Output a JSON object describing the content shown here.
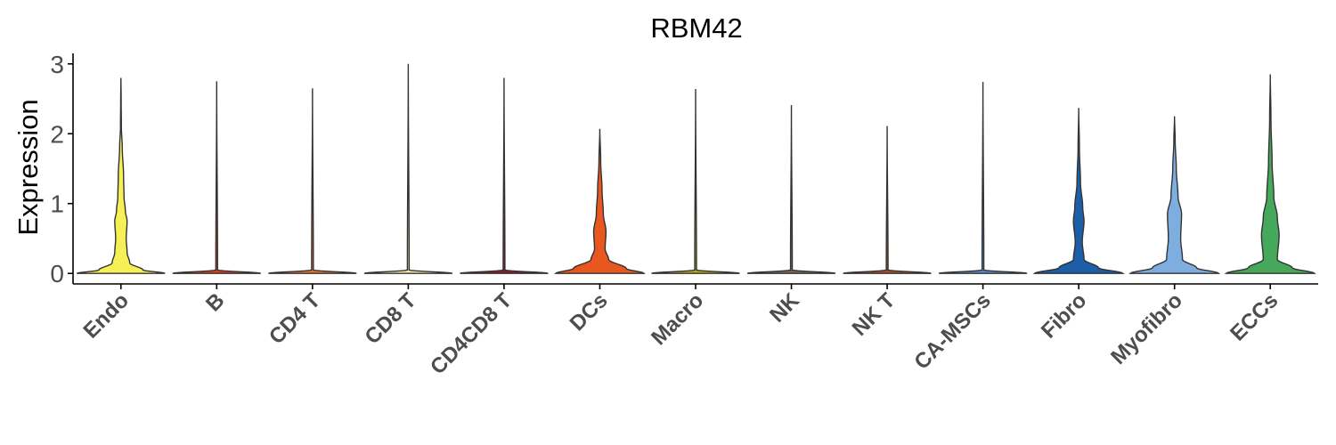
{
  "chart_data": {
    "type": "violin",
    "title": "RBM42",
    "xlabel": "",
    "ylabel": "Expression",
    "ylim": [
      -0.15,
      3.15
    ],
    "yticks": [
      0,
      1,
      2,
      3
    ],
    "grid": false,
    "legend": "none",
    "categories": [
      "Endo",
      "B",
      "CD4 T",
      "CD8 T",
      "CD4CD8 T",
      "DCs",
      "Macro",
      "NK",
      "NK T",
      "CA-MSCs",
      "Fibro",
      "Myofibro",
      "ECCs"
    ],
    "colors": [
      "#F7EF56",
      "#DC3B1E",
      "#E6732E",
      "#F2E9A4",
      "#8A1C2B",
      "#E8571E",
      "#B5A91E",
      "#7A6A5A",
      "#A34E2C",
      "#5A8AC2",
      "#1C5FA8",
      "#7EAEE0",
      "#45A85A"
    ],
    "max_values": [
      2.8,
      2.75,
      2.65,
      3.0,
      2.8,
      2.07,
      2.64,
      2.41,
      2.11,
      2.74,
      2.37,
      2.25,
      2.85
    ],
    "density_profiles": [
      [
        [
          0,
          1
        ],
        [
          0.05,
          0.5
        ],
        [
          0.15,
          0.2
        ],
        [
          0.3,
          0.14
        ],
        [
          0.5,
          0.12
        ],
        [
          0.75,
          0.14
        ],
        [
          0.9,
          0.1
        ],
        [
          1.1,
          0.07
        ],
        [
          1.4,
          0.06
        ],
        [
          1.8,
          0.03
        ],
        [
          2.1,
          0.01
        ],
        [
          2.5,
          0.005
        ],
        [
          2.8,
          0
        ]
      ],
      [
        [
          0,
          1
        ],
        [
          0.05,
          0.02
        ],
        [
          2.75,
          0
        ]
      ],
      [
        [
          0,
          1
        ],
        [
          0.05,
          0.02
        ],
        [
          2.65,
          0
        ]
      ],
      [
        [
          0,
          1
        ],
        [
          0.05,
          0.02
        ],
        [
          3.0,
          0
        ]
      ],
      [
        [
          0,
          1
        ],
        [
          0.05,
          0.02
        ],
        [
          2.8,
          0
        ]
      ],
      [
        [
          0,
          1
        ],
        [
          0.07,
          0.6
        ],
        [
          0.2,
          0.2
        ],
        [
          0.35,
          0.12
        ],
        [
          0.6,
          0.14
        ],
        [
          0.85,
          0.08
        ],
        [
          1.2,
          0.05
        ],
        [
          1.6,
          0.02
        ],
        [
          2.07,
          0
        ]
      ],
      [
        [
          0,
          1
        ],
        [
          0.05,
          0.02
        ],
        [
          2.64,
          0
        ]
      ],
      [
        [
          0,
          1
        ],
        [
          0.05,
          0.02
        ],
        [
          2.41,
          0
        ]
      ],
      [
        [
          0,
          1
        ],
        [
          0.05,
          0.02
        ],
        [
          2.11,
          0
        ]
      ],
      [
        [
          0,
          1
        ],
        [
          0.05,
          0.02
        ],
        [
          2.74,
          0
        ]
      ],
      [
        [
          0,
          1
        ],
        [
          0.08,
          0.45
        ],
        [
          0.2,
          0.12
        ],
        [
          0.45,
          0.08
        ],
        [
          0.75,
          0.12
        ],
        [
          0.95,
          0.09
        ],
        [
          1.3,
          0.04
        ],
        [
          1.8,
          0.015
        ],
        [
          2.37,
          0
        ]
      ],
      [
        [
          0,
          1
        ],
        [
          0.08,
          0.5
        ],
        [
          0.2,
          0.18
        ],
        [
          0.5,
          0.14
        ],
        [
          0.85,
          0.16
        ],
        [
          1.1,
          0.08
        ],
        [
          1.5,
          0.04
        ],
        [
          1.9,
          0.015
        ],
        [
          2.25,
          0
        ]
      ],
      [
        [
          0,
          1
        ],
        [
          0.08,
          0.5
        ],
        [
          0.2,
          0.16
        ],
        [
          0.55,
          0.2
        ],
        [
          0.8,
          0.16
        ],
        [
          1.1,
          0.08
        ],
        [
          1.6,
          0.04
        ],
        [
          2.2,
          0.015
        ],
        [
          2.85,
          0
        ]
      ]
    ]
  }
}
